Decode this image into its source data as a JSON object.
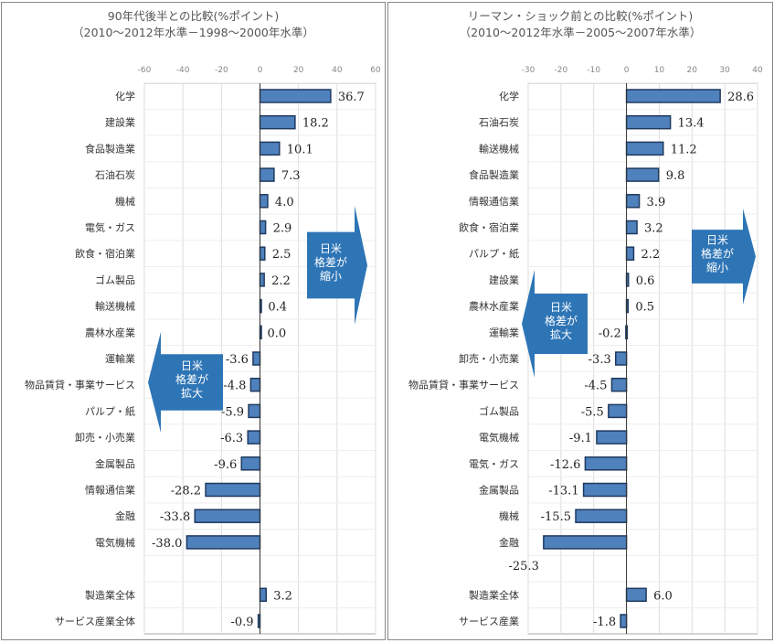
{
  "chart_data": [
    {
      "type": "bar",
      "orientation": "horizontal",
      "title": "90年代後半との比較(%ポイント)",
      "subtitle": "（2010～2012年水準－1998～2000年水準）",
      "xlim": [
        -60,
        60
      ],
      "ticks": [
        -60,
        -40,
        -20,
        0,
        20,
        40,
        60
      ],
      "grid": true,
      "categories": [
        "化学",
        "建設業",
        "食品製造業",
        "石油石炭",
        "機械",
        "電気・ガス",
        "飲食・宿泊業",
        "ゴム製品",
        "輸送機械",
        "農林水産業",
        "運輸業",
        "物品賃貸・事業サービス",
        "パルプ・紙",
        "卸売・小売業",
        "金属製品",
        "情報通信業",
        "金融",
        "電気機械",
        "",
        "製造業全体",
        "サービス産業全体"
      ],
      "values": [
        36.7,
        18.2,
        10.1,
        7.3,
        4.0,
        2.9,
        2.5,
        2.2,
        0.4,
        0.0,
        -3.6,
        -4.8,
        -5.9,
        -6.3,
        -9.6,
        -28.2,
        -33.8,
        -38.0,
        null,
        3.2,
        -0.9
      ],
      "annotations": [
        {
          "text": "日米\n格差が\n縮小",
          "direction": "right"
        },
        {
          "text": "日米\n格差が\n拡大",
          "direction": "left"
        }
      ],
      "bar_color": "#4f81bd"
    },
    {
      "type": "bar",
      "orientation": "horizontal",
      "title": "リーマン・ショック前との比較(%ポイント)",
      "subtitle": "（2010～2012年水準－2005～2007年水準）",
      "xlim": [
        -30,
        40
      ],
      "ticks": [
        -30,
        -20,
        -10,
        0,
        10,
        20,
        30,
        40
      ],
      "grid": true,
      "categories": [
        "化学",
        "石油石炭",
        "輸送機械",
        "食品製造業",
        "情報通信業",
        "飲食・宿泊業",
        "パルプ・紙",
        "建設業",
        "農林水産業",
        "運輸業",
        "卸売・小売業",
        "物品賃貸・事業サービス",
        "ゴム製品",
        "電気機械",
        "電気・ガス",
        "金属製品",
        "機械",
        "金融",
        "",
        "製造業全体",
        "サービス産業"
      ],
      "values": [
        28.6,
        13.4,
        11.2,
        9.8,
        3.9,
        3.2,
        2.2,
        0.6,
        0.5,
        -0.2,
        -3.3,
        -4.5,
        -5.5,
        -9.1,
        -12.6,
        -13.1,
        -15.5,
        -25.3,
        null,
        6.0,
        -1.8
      ],
      "annotations": [
        {
          "text": "日米\n格差が\n縮小",
          "direction": "right"
        },
        {
          "text": "日米\n格差が\n拡大",
          "direction": "left"
        }
      ],
      "bar_color": "#4f81bd"
    }
  ]
}
